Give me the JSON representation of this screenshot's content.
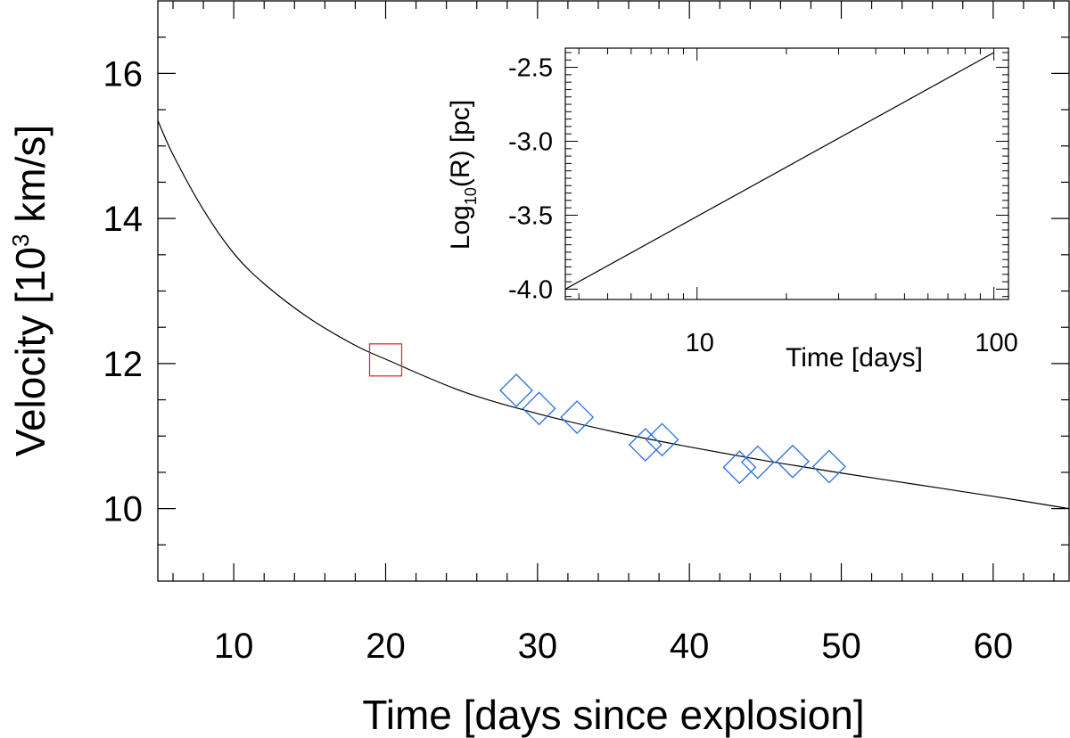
{
  "chart_data": [
    {
      "type": "scatter",
      "xlabel": "Time [days since explosion]",
      "ylabel_main": "Velocity [10",
      "ylabel_sup": "3",
      "ylabel_tail": " km/s]",
      "xlim": [
        5,
        65
      ],
      "ylim": [
        9,
        17
      ],
      "xticks": [
        10,
        20,
        30,
        40,
        50,
        60
      ],
      "yticks": [
        10,
        12,
        14,
        16
      ],
      "grid": false,
      "curve": {
        "name": "",
        "color": "#000000",
        "x": [
          5,
          6,
          8,
          10,
          12,
          15,
          18,
          20,
          25,
          30,
          35,
          40,
          45,
          50,
          55,
          60,
          65
        ],
        "y": [
          15.35,
          14.88,
          14.12,
          13.52,
          13.1,
          12.62,
          12.25,
          12.06,
          11.62,
          11.31,
          11.06,
          10.85,
          10.66,
          10.49,
          10.33,
          10.17,
          10.0
        ]
      },
      "series": [
        {
          "name": "",
          "marker": "square",
          "color": "#e03030",
          "x": [
            20
          ],
          "y": [
            12.05
          ]
        },
        {
          "name": "",
          "marker": "diamond",
          "color": "#2a6fd6",
          "x": [
            28.6,
            30.1,
            32.6,
            37.1,
            38.2,
            43.3,
            44.5,
            46.8,
            49.2
          ],
          "y": [
            11.63,
            11.38,
            11.26,
            10.88,
            10.95,
            10.57,
            10.64,
            10.65,
            10.58
          ]
        }
      ]
    },
    {
      "type": "line",
      "xlabel": "Time [days]",
      "ylabel_main": "Log",
      "ylabel_sub": "10",
      "ylabel_tail": "(R) [pc]",
      "xscale": "log",
      "xlim": [
        3.6,
        112
      ],
      "ylim": [
        -4.07,
        -2.37
      ],
      "xticks": [
        10,
        100
      ],
      "yticks": [
        -4.0,
        -3.5,
        -3.0,
        -2.5
      ],
      "ytick_labels": [
        "-4.0",
        "-3.5",
        "-3.0",
        "-2.5"
      ],
      "grid": false,
      "series": [
        {
          "name": "",
          "color": "#000000",
          "x": [
            3.6,
            100
          ],
          "y": [
            -4.0,
            -2.4
          ]
        }
      ]
    }
  ]
}
